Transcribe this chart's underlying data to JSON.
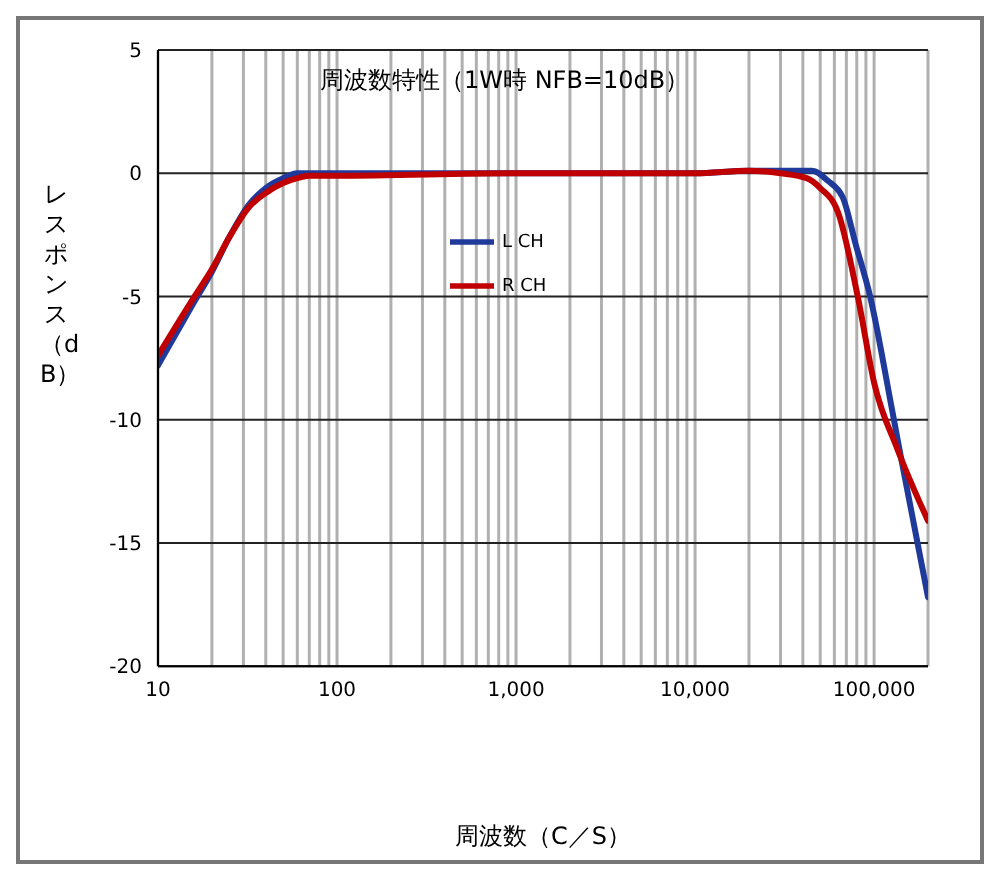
{
  "chart_data": {
    "type": "line",
    "title": "周波数特性（1W時 NFB=10dB）",
    "xlabel": "周波数（C／S）",
    "ylabel": "レスポンス（dB）",
    "log": "x",
    "grid": true,
    "legend": "top",
    "marker": "none",
    "line_style": "solid",
    "xlim": [
      10,
      200000
    ],
    "xticks": [
      10,
      100,
      {
        "value": 1000,
        "label": "1,000"
      },
      {
        "value": 10000,
        "label": "10,000"
      },
      {
        "value": 100000,
        "label": "100,000"
      }
    ],
    "ylim": [
      -20,
      5
    ],
    "yticks": [
      -20,
      -15,
      -10,
      -5,
      0,
      5
    ],
    "series": [
      {
        "name": "L CH",
        "color": "#1f3a9a",
        "x": [
          10,
          16,
          20,
          25,
          32,
          40,
          50,
          60,
          70,
          100,
          1000,
          10000,
          20000,
          45000,
          55000,
          67000,
          79000,
          95000,
          126000,
          141000,
          200000
        ],
        "values": [
          -7.8,
          -5.2,
          -4,
          -2.6,
          -1.3,
          -0.6,
          -0.2,
          0,
          0,
          0,
          0,
          0,
          0.1,
          0.1,
          -0.3,
          -1,
          -2.9,
          -5,
          -9.6,
          -11.5,
          -17.2
        ]
      },
      {
        "name": "R CH",
        "color": "#c00000",
        "x": [
          10,
          16,
          20,
          25,
          32,
          40,
          50,
          60,
          70,
          100,
          1000,
          10000,
          20000,
          30000,
          42000,
          50000,
          63000,
          81000,
          100000,
          135000,
          200000
        ],
        "values": [
          -7.4,
          -5,
          -3.9,
          -2.6,
          -1.4,
          -0.8,
          -0.4,
          -0.2,
          -0.1,
          -0.1,
          0,
          0,
          0.1,
          0,
          -0.2,
          -0.6,
          -1.6,
          -5,
          -8.5,
          -11.2,
          -14.1
        ]
      }
    ]
  }
}
